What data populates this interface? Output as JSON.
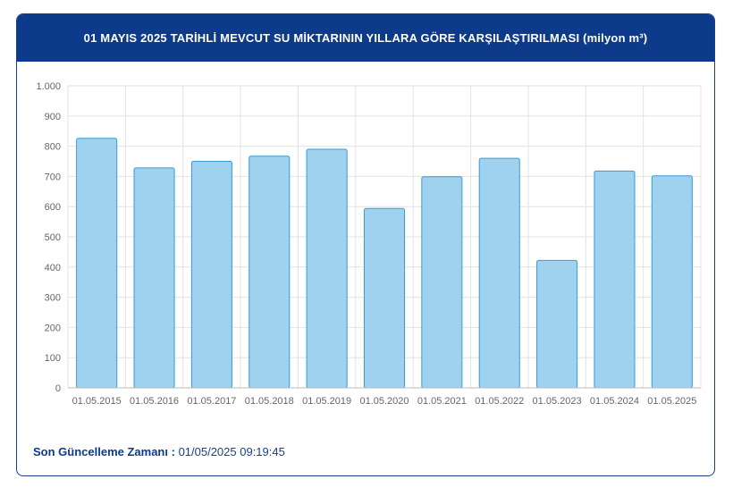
{
  "header": {
    "title": "01 MAYIS 2025 TARİHLİ MEVCUT SU MİKTARININ YILLARA GÖRE KARŞILAŞTIRILMASI (milyon m³)"
  },
  "footer": {
    "label": "Son Güncelleme Zamanı :",
    "value": "01/05/2025 09:19:45"
  },
  "colors": {
    "header_bg": "#0e3a8c",
    "bar_fill": "#9fd2ee",
    "bar_stroke": "#3a9ad4",
    "grid": "#e2e2e2"
  },
  "chart_data": {
    "type": "bar",
    "title": "01 MAYIS 2025 TARİHLİ MEVCUT SU MİKTARININ YILLARA GÖRE KARŞILAŞTIRILMASI (milyon m³)",
    "categories": [
      "01.05.2015",
      "01.05.2016",
      "01.05.2017",
      "01.05.2018",
      "01.05.2019",
      "01.05.2020",
      "01.05.2021",
      "01.05.2022",
      "01.05.2023",
      "01.05.2024",
      "01.05.2025"
    ],
    "values": [
      826,
      728,
      750,
      767,
      790,
      594,
      699,
      760,
      422,
      718,
      702
    ],
    "ylim": [
      0,
      1000
    ],
    "yticks": [
      0,
      100,
      200,
      300,
      400,
      500,
      600,
      700,
      800,
      900,
      1000
    ],
    "ytick_labels": [
      "0",
      "100",
      "200",
      "300",
      "400",
      "500",
      "600",
      "700",
      "800",
      "900",
      "1.000"
    ],
    "grid": true,
    "legend": "none"
  }
}
